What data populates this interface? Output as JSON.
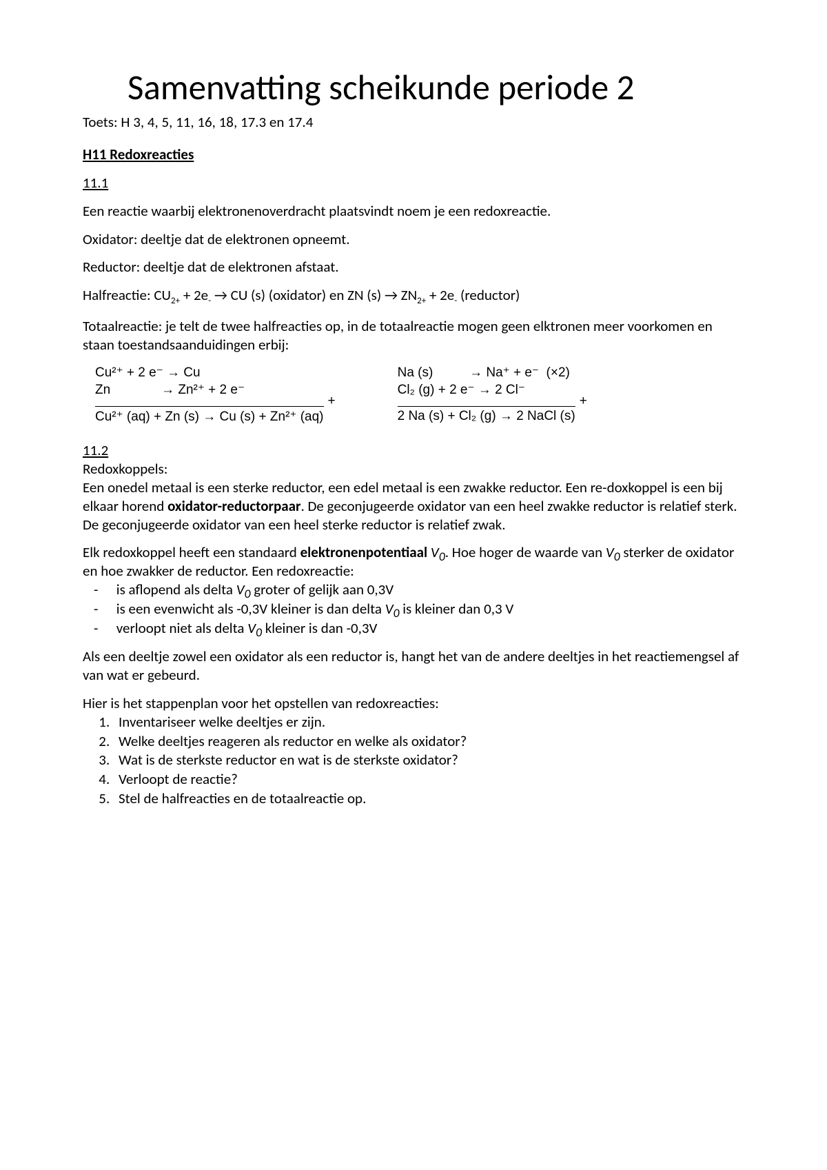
{
  "title": "Samenvatting scheikunde periode 2",
  "subtitle": "Toets: H 3, 4, 5, 11, 16, 18, 17.3 en 17.4",
  "heading_h11": "H11 Redoxreacties",
  "sec_11_1": "11.1",
  "p1": "Een reactie waarbij elektronenoverdracht plaatsvindt noem je een redoxreactie.",
  "p2": "Oxidator: deeltje dat de elektronen opneemt.",
  "p3": "Reductor: deeltje dat de elektronen afstaat.",
  "half_prefix": "Halfreactie: CU",
  "half_mid1": " + 2e",
  "half_mid2": " → CU (s) (oxidator) en ZN (s) → ZN",
  "half_mid3": " + 2e",
  "half_suffix": " (reductor)",
  "p5": "Totaalreactie: je telt de twee halfreacties op, in de totaalreactie mogen geen elktronen meer voorkomen en staan toestandsaanduidingen erbij:",
  "eq": {
    "left": {
      "l1": "Cu²⁺ + 2 e⁻ → Cu",
      "l2": "Zn              → Zn²⁺ + 2 e⁻",
      "sum": "Cu²⁺ (aq) + Zn (s) → Cu (s) + Zn²⁺ (aq)"
    },
    "right": {
      "l1": "Na (s)          → Na⁺ + e⁻  (×2)",
      "l2": "Cl₂ (g) + 2 e⁻ → 2 Cl⁻",
      "sum": "2 Na (s) + Cl₂ (g) → 2 NaCl (s)"
    }
  },
  "sec_11_2": "11.2",
  "redoxkoppels_label": "Redoxkoppels:",
  "p6a": "Een onedel metaal is een sterke reductor, een edel metaal is een zwakke reductor. Een re-doxkoppel is een bij elkaar horend ",
  "p6b": "oxidator-reductorpaar",
  "p6c": ". De geconjugeerde oxidator van een heel zwakke reductor is relatief sterk. De geconjugeerde oxidator van een heel sterke reductor is relatief zwak.",
  "p7a": "Elk redoxkoppel heeft een standaard ",
  "p7b": "elektronenpotentiaal",
  "p7c": " ",
  "p7d": "V",
  "p7e": ". Hoe hoger de waarde van ",
  "p7f": "V",
  "p7g": " sterker de oxidator en hoe zwakker de reductor. Een redoxreactie:",
  "bullets": {
    "b1a": "is aflopend als delta ",
    "b1b": "V",
    "b1c": " groter of gelijk aan 0,3V",
    "b2a": "is een evenwicht als -0,3V kleiner is dan delta ",
    "b2b": "V",
    "b2c": " is kleiner dan 0,3 V",
    "b3a": "verloopt niet als delta ",
    "b3b": "V",
    "b3c": " kleiner is dan -0,3V"
  },
  "p8": "Als een deeltje zowel een oxidator als een reductor is, hangt het van de andere deeltjes in het reactiemengsel af van wat er gebeurd.",
  "p9": "Hier is het stappenplan voor het opstellen van redoxreacties:",
  "steps": {
    "s1": "Inventariseer welke deeltjes er zijn.",
    "s2": "Welke deeltjes reageren als reductor en welke als oxidator?",
    "s3": "Wat is de sterkste reductor en wat is de sterkste oxidator?",
    "s4": "Verloopt de reactie?",
    "s5": "Stel de halfreacties en de totaalreactie op."
  },
  "sub0": "0",
  "sub2plus": "2+",
  "subminus": "-"
}
